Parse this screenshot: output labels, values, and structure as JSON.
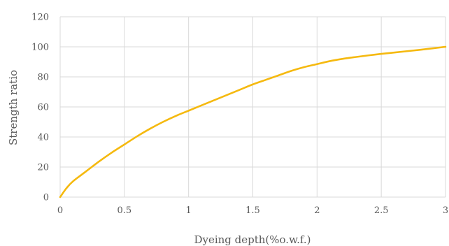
{
  "chart_data": {
    "type": "line",
    "title": "",
    "xlabel": "Dyeing depth(%o.w.f.)",
    "ylabel": "Strength ratio",
    "xlim": [
      0,
      3
    ],
    "ylim": [
      0,
      120
    ],
    "xticks": [
      0,
      0.5,
      1,
      1.5,
      2,
      2.5,
      3
    ],
    "xtick_labels": [
      "0",
      "0.5",
      "1",
      "1.5",
      "2",
      "2.5",
      "3"
    ],
    "yticks": [
      0,
      20,
      40,
      60,
      80,
      100,
      120
    ],
    "ytick_labels": [
      "0",
      "20",
      "40",
      "60",
      "80",
      "100",
      "120"
    ],
    "grid": true,
    "legend": "none",
    "series": [
      {
        "color": "#f5b90f",
        "x": [
          0,
          0.05,
          0.1,
          0.2,
          0.3,
          0.4,
          0.5,
          0.6,
          0.7,
          0.8,
          0.9,
          1.0,
          1.1,
          1.2,
          1.3,
          1.4,
          1.5,
          1.6,
          1.7,
          1.8,
          1.9,
          2.0,
          2.1,
          2.2,
          2.3,
          2.4,
          2.5,
          2.6,
          2.7,
          2.8,
          2.9,
          3.0
        ],
        "y": [
          0,
          6,
          10.5,
          17,
          23.5,
          29.5,
          35,
          40.5,
          45.5,
          50,
          54,
          57.5,
          61,
          64.5,
          68,
          71.5,
          75,
          78,
          81,
          84,
          86.5,
          88.5,
          90.5,
          92,
          93.2,
          94.3,
          95.3,
          96.2,
          97.1,
          98,
          99,
          100
        ]
      }
    ]
  }
}
